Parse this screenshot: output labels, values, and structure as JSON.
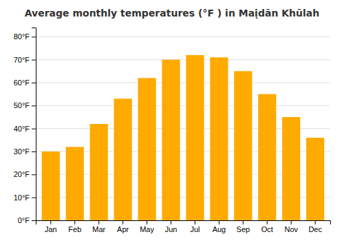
{
  "chart_data": {
    "type": "bar",
    "title": "Average monthly temperatures (°F ) in Maįdān Khūlah",
    "categories": [
      "Jan",
      "Feb",
      "Mar",
      "Apr",
      "May",
      "Jun",
      "Jul",
      "Aug",
      "Sep",
      "Oct",
      "Nov",
      "Dec"
    ],
    "values": [
      30,
      32,
      42,
      53,
      62,
      70,
      72,
      71,
      65,
      55,
      45,
      36
    ],
    "color": "#FFAA00",
    "ylim": [
      0,
      84
    ],
    "yticks": [
      {
        "value": 0,
        "label": "0°F"
      },
      {
        "value": 10,
        "label": "10°F"
      },
      {
        "value": 20,
        "label": "20°F"
      },
      {
        "value": 30,
        "label": "30°F"
      },
      {
        "value": 40,
        "label": "40°F"
      },
      {
        "value": 50,
        "label": "50°F"
      },
      {
        "value": 60,
        "label": "60°F"
      },
      {
        "value": 70,
        "label": "70°F"
      },
      {
        "value": 80,
        "label": "80°F"
      }
    ],
    "grid": true
  }
}
